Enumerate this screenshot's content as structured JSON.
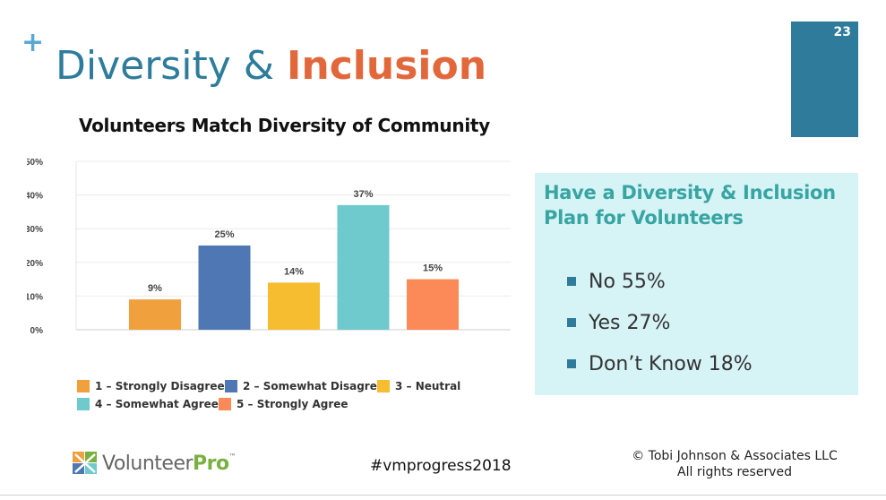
{
  "slide": {
    "plus_glyph": "+",
    "title_part1": "Diversity & ",
    "title_part2": "Inclusion",
    "page_number": "23",
    "accent_color": "#2f7b9b",
    "title_highlight_color": "#e2683c"
  },
  "chart_data": {
    "type": "bar",
    "title": "Volunteers Match Diversity of Community",
    "categories": [
      "1 – Strongly Disagree",
      "2 – Somewhat Disagree",
      "3 – Neutral",
      "4 – Somewhat Agree",
      "5 – Strongly Agree"
    ],
    "values": [
      9,
      25,
      14,
      37,
      15
    ],
    "data_labels": [
      "9%",
      "25%",
      "14%",
      "37%",
      "15%"
    ],
    "colors": [
      "#f0a03c",
      "#4e77b3",
      "#f5bd2f",
      "#6ecacc",
      "#fb8a58"
    ],
    "ylim": [
      0,
      50
    ],
    "yticks": [
      0,
      10,
      20,
      30,
      40,
      50
    ],
    "ytick_labels": [
      "0%",
      "10%",
      "20%",
      "30%",
      "40%",
      "50%"
    ],
    "grid": true,
    "legend_position": "bottom"
  },
  "callout": {
    "title": "Have a Diversity & Inclusion Plan for Volunteers",
    "items": [
      {
        "label": "No 55%"
      },
      {
        "label": "Yes 27%"
      },
      {
        "label": "Don’t Know 18%"
      }
    ]
  },
  "footer": {
    "logo_text_main": "Volunteer",
    "logo_text_accent": "Pro",
    "logo_tm": "™",
    "hashtag": "#vmprogress2018",
    "copyright_line1": "© Tobi Johnson & Associates LLC",
    "copyright_line2": "All rights reserved"
  }
}
